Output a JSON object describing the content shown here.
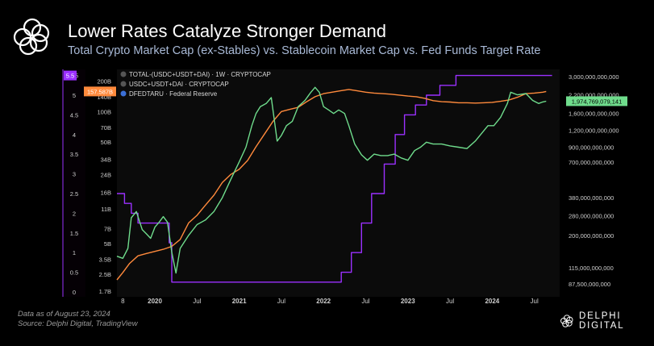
{
  "header": {
    "title": "Lower Rates Catalyze Stronger Demand",
    "subtitle": "Total Crypto Market Cap (ex-Stables) vs. Stablecoin Market Cap vs. Fed Funds Target Rate"
  },
  "footer": {
    "line1": "Data as of August 23, 2024",
    "line2": "Source: Delphi Digital, TradingView"
  },
  "brand": {
    "name": "DELPHI DIGITAL",
    "logo_icon": "delphi-knot-icon"
  },
  "colors": {
    "background": "#000000",
    "plot_background": "#0b0b0b",
    "total_line": "#6fdc8c",
    "stable_line": "#ff8a3c",
    "fed_line": "#9b30ff",
    "axis_text": "#cfcfcf"
  },
  "chart_data": {
    "type": "line",
    "x_ticks": [
      "8",
      "2020",
      "Jul",
      "2021",
      "Jul",
      "2022",
      "Jul",
      "2023",
      "Jul",
      "2024",
      "Jul"
    ],
    "left_rate_ticks": [
      "0",
      "0.5",
      "1",
      "1.5",
      "2",
      "2.5",
      "3",
      "3.5",
      "4",
      "4.5",
      "5",
      "5.5"
    ],
    "left_stable_ticks": [
      "1.7B",
      "2.5B",
      "3.5B",
      "5B",
      "7B",
      "11B",
      "16B",
      "24B",
      "34B",
      "50B",
      "70B",
      "100B",
      "140B",
      "200B"
    ],
    "right_ticks": [
      "87,500,000,000",
      "115,000,000,000",
      "200,000,000,000",
      "280,000,000,000",
      "380,000,000,000",
      "700,000,000,000",
      "900,000,000,000",
      "1,200,000,000,000",
      "1,600,000,000,000",
      "2,200,000,000,000",
      "3,000,000,000,000"
    ],
    "legend": [
      {
        "label": "TOTAL-(USDC+USDT+DAI) · 1W · CRYPTOCAP",
        "color": "#6fdc8c"
      },
      {
        "label": "USDC+USDT+DAI · CRYPTOCAP",
        "color": "#ff8a3c"
      },
      {
        "label": "DFEDTARU · Federal Reserve",
        "color": "#9b30ff"
      }
    ],
    "last_values": {
      "fed": "5.5",
      "stable": "157.587B",
      "total": "1,974,769,079,141"
    },
    "series": [
      {
        "name": "TOTAL-(USDC+USDT+DAI)",
        "axis": "right",
        "x": [
          2019.55,
          2019.62,
          2019.68,
          2019.72,
          2019.78,
          2019.85,
          2019.9,
          2019.95,
          2020.0,
          2020.05,
          2020.1,
          2020.15,
          2020.2,
          2020.25,
          2020.3,
          2020.4,
          2020.5,
          2020.6,
          2020.7,
          2020.8,
          2020.9,
          2021.0,
          2021.08,
          2021.15,
          2021.2,
          2021.25,
          2021.32,
          2021.38,
          2021.45,
          2021.5,
          2021.56,
          2021.63,
          2021.7,
          2021.78,
          2021.85,
          2021.9,
          2021.95,
          2022.0,
          2022.06,
          2022.12,
          2022.18,
          2022.25,
          2022.3,
          2022.37,
          2022.45,
          2022.52,
          2022.6,
          2022.68,
          2022.76,
          2022.84,
          2022.92,
          2023.0,
          2023.08,
          2023.15,
          2023.22,
          2023.3,
          2023.4,
          2023.5,
          2023.6,
          2023.7,
          2023.8,
          2023.88,
          2023.95,
          2024.02,
          2024.1,
          2024.18,
          2024.22,
          2024.3,
          2024.4,
          2024.48,
          2024.55,
          2024.6,
          2024.64
        ],
        "y": [
          140000000000.0,
          135000000000.0,
          160000000000.0,
          270000000000.0,
          300000000000.0,
          220000000000.0,
          205000000000.0,
          190000000000.0,
          230000000000.0,
          250000000000.0,
          275000000000.0,
          250000000000.0,
          150000000000.0,
          105000000000.0,
          160000000000.0,
          200000000000.0,
          240000000000.0,
          260000000000.0,
          300000000000.0,
          380000000000.0,
          520000000000.0,
          700000000000.0,
          900000000000.0,
          1300000000000.0,
          1600000000000.0,
          1800000000000.0,
          1900000000000.0,
          2100000000000.0,
          1000000000000.0,
          1100000000000.0,
          1300000000000.0,
          1400000000000.0,
          1800000000000.0,
          2000000000000.0,
          2300000000000.0,
          2500000000000.0,
          2300000000000.0,
          1800000000000.0,
          1700000000000.0,
          1600000000000.0,
          1700000000000.0,
          1600000000000.0,
          1300000000000.0,
          950000000000.0,
          790000000000.0,
          720000000000.0,
          800000000000.0,
          780000000000.0,
          780000000000.0,
          800000000000.0,
          750000000000.0,
          720000000000.0,
          850000000000.0,
          900000000000.0,
          980000000000.0,
          950000000000.0,
          950000000000.0,
          920000000000.0,
          900000000000.0,
          880000000000.0,
          1000000000000.0,
          1150000000000.0,
          1300000000000.0,
          1300000000000.0,
          1500000000000.0,
          1900000000000.0,
          2300000000000.0,
          2200000000000.0,
          2250000000000.0,
          2000000000000.0,
          1900000000000.0,
          1950000000000.0,
          1974800000000.0
        ]
      },
      {
        "name": "USDC+USDT+DAI",
        "axis": "left_stable",
        "x": [
          2019.55,
          2019.62,
          2019.7,
          2019.8,
          2019.9,
          2020.0,
          2020.1,
          2020.2,
          2020.3,
          2020.4,
          2020.5,
          2020.6,
          2020.7,
          2020.8,
          2020.9,
          2021.0,
          2021.1,
          2021.2,
          2021.3,
          2021.4,
          2021.5,
          2021.6,
          2021.7,
          2021.8,
          2021.9,
          2022.0,
          2022.1,
          2022.2,
          2022.3,
          2022.4,
          2022.5,
          2022.6,
          2022.7,
          2022.8,
          2022.9,
          2023.0,
          2023.1,
          2023.2,
          2023.3,
          2023.4,
          2023.5,
          2023.6,
          2023.7,
          2023.8,
          2023.9,
          2024.0,
          2024.1,
          2024.2,
          2024.3,
          2024.4,
          2024.5,
          2024.6,
          2024.64
        ],
        "y": [
          2.2,
          2.6,
          3.2,
          3.8,
          4.0,
          4.2,
          4.4,
          4.7,
          5.5,
          8,
          9.5,
          12,
          15,
          20,
          24,
          27,
          33,
          45,
          60,
          80,
          100,
          105,
          110,
          125,
          140,
          150,
          155,
          160,
          165,
          160,
          155,
          152,
          150,
          148,
          145,
          142,
          140,
          135,
          128,
          125,
          124,
          122,
          122,
          121,
          122,
          123,
          126,
          130,
          138,
          150,
          152,
          155,
          157.6
        ]
      },
      {
        "name": "DFEDTARU",
        "axis": "left_rate",
        "x": [
          2019.55,
          2019.64,
          2019.64,
          2019.72,
          2019.72,
          2019.8,
          2019.8,
          2020.17,
          2020.17,
          2020.2,
          2020.2,
          2022.21,
          2022.21,
          2022.33,
          2022.33,
          2022.45,
          2022.45,
          2022.57,
          2022.57,
          2022.72,
          2022.72,
          2022.85,
          2022.85,
          2022.96,
          2022.96,
          2023.09,
          2023.09,
          2023.22,
          2023.22,
          2023.38,
          2023.38,
          2023.57,
          2023.57,
          2024.71
        ],
        "y": [
          2.5,
          2.5,
          2.25,
          2.25,
          2.0,
          2.0,
          1.75,
          1.75,
          1.25,
          1.25,
          0.25,
          0.25,
          0.5,
          0.5,
          1.0,
          1.0,
          1.75,
          1.75,
          2.5,
          2.5,
          3.25,
          3.25,
          4.0,
          4.0,
          4.5,
          4.5,
          4.75,
          4.75,
          5.0,
          5.0,
          5.25,
          5.25,
          5.5,
          5.5
        ]
      }
    ]
  }
}
